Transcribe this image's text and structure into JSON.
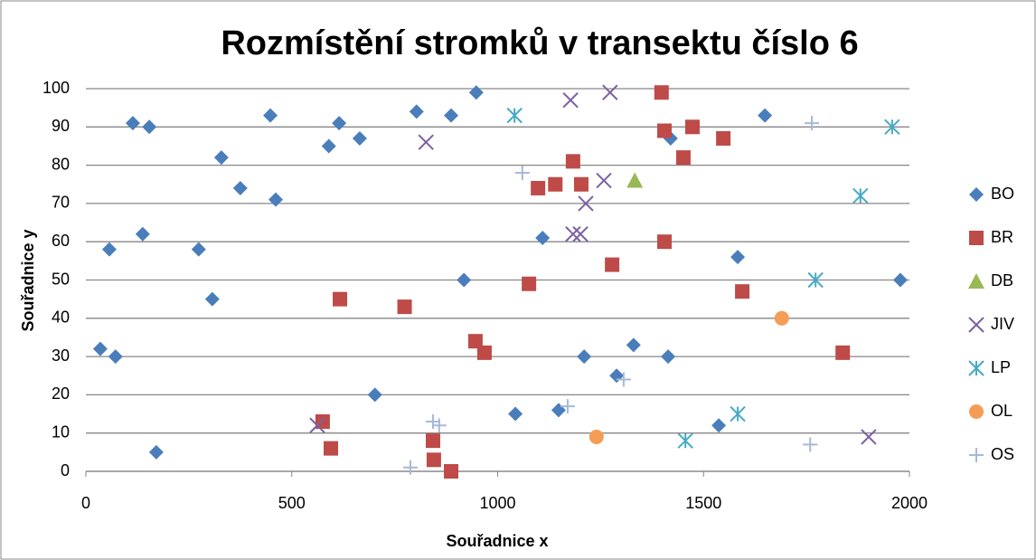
{
  "chart_data": {
    "type": "scatter",
    "title": "Rozmístění stromků v transektu číslo 6",
    "x_label": "Souřadnice x",
    "y_label": "Souřadnice y",
    "xlim": [
      0,
      2000
    ],
    "xticks": [
      0,
      500,
      1000,
      1500,
      2000
    ],
    "ylim": [
      0,
      100
    ],
    "yticks": [
      0,
      10,
      20,
      30,
      40,
      50,
      60,
      70,
      80,
      90,
      100
    ],
    "grid": true,
    "legend": "right",
    "series": [
      {
        "name": "BO",
        "color": "#4a7ebb",
        "marker": "diamond",
        "x": [
          35,
          72,
          114,
          154,
          57,
          138,
          171,
          274,
          307,
          329,
          375,
          448,
          461,
          590,
          615,
          665,
          702,
          803,
          887,
          918,
          948,
          1043,
          1109,
          1148,
          1210,
          1289,
          1330,
          1414,
          1420,
          1537,
          1583,
          1649,
          1978
        ],
        "values": [
          32,
          30,
          91,
          90,
          58,
          62,
          5,
          58,
          45,
          82,
          74,
          93,
          71,
          85,
          91,
          87,
          20,
          94,
          93,
          50,
          99,
          15,
          61,
          16,
          30,
          25,
          33,
          30,
          87,
          12,
          56,
          93,
          50
        ]
      },
      {
        "name": "BR",
        "color": "#be4b48",
        "marker": "square",
        "x": [
          575,
          595,
          617,
          774,
          843,
          845,
          887,
          946,
          968,
          1076,
          1098,
          1140,
          1183,
          1203,
          1278,
          1398,
          1405,
          1405,
          1451,
          1473,
          1548,
          1594,
          1838
        ],
        "values": [
          13,
          6,
          45,
          43,
          8,
          3,
          0,
          34,
          31,
          49,
          74,
          75,
          81,
          75,
          54,
          99,
          89,
          60,
          82,
          90,
          87,
          47,
          31
        ]
      },
      {
        "name": "DB",
        "color": "#98b954",
        "marker": "triangle",
        "x": [
          1333
        ],
        "values": [
          76
        ]
      },
      {
        "name": "JIV",
        "color": "#7d60a0",
        "marker": "x",
        "x": [
          562,
          826,
          1177,
          1183,
          1201,
          1214,
          1258,
          1273,
          1901
        ],
        "values": [
          12,
          86,
          97,
          62,
          62,
          70,
          76,
          99,
          9
        ]
      },
      {
        "name": "LP",
        "color": "#46aac5",
        "marker": "star",
        "x": [
          1041,
          1456,
          1583,
          1772,
          1881,
          1958
        ],
        "values": [
          93,
          8,
          15,
          50,
          72,
          90
        ]
      },
      {
        "name": "OL",
        "color": "#f59d56",
        "marker": "circle",
        "x": [
          1240,
          1690
        ],
        "values": [
          9,
          40
        ]
      },
      {
        "name": "OS",
        "color": "#a5b9d9",
        "marker": "plus",
        "x": [
          1060,
          788,
          843,
          858,
          1170,
          1306,
          1763,
          1759
        ],
        "values": [
          78,
          1,
          13,
          12,
          17,
          24,
          91,
          7
        ]
      }
    ]
  }
}
